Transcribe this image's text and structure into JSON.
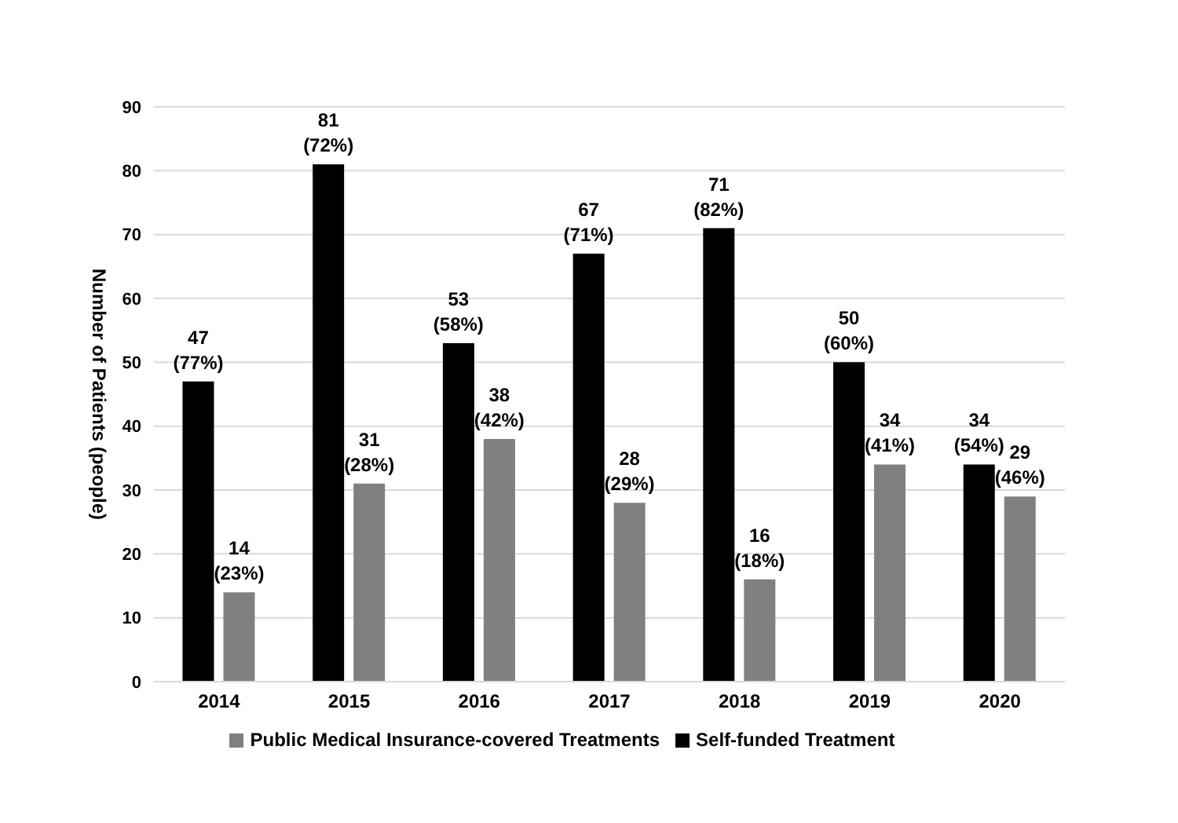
{
  "chart_data": {
    "type": "bar",
    "ylabel": "Number of Patients (people)",
    "categories": [
      "2014",
      "2015",
      "2016",
      "2017",
      "2018",
      "2019",
      "2020"
    ],
    "series": [
      {
        "name": "Self-funded Treatment",
        "color": "#000000",
        "values": [
          47,
          81,
          53,
          67,
          71,
          50,
          34
        ],
        "value_labels": [
          "47 (77%)",
          "81 (72%)",
          "53 (58%)",
          "67 (71%)",
          "71 (82%)",
          "50 (60%)",
          "34 (54%)"
        ]
      },
      {
        "name": "Public Medical Insurance-covered Treatments",
        "color": "#808080",
        "values": [
          14,
          31,
          38,
          28,
          16,
          34,
          29
        ],
        "value_labels": [
          "14 (23%)",
          "31 (28%)",
          "38 (42%)",
          "28 (29%)",
          "16 (18%)",
          "34 (41%)",
          "29 (46%)"
        ]
      }
    ],
    "ylim": [
      0,
      90
    ],
    "yticks": [
      0,
      10,
      20,
      30,
      40,
      50,
      60,
      70,
      80,
      90
    ],
    "grid": "y",
    "legend": "bottom"
  }
}
